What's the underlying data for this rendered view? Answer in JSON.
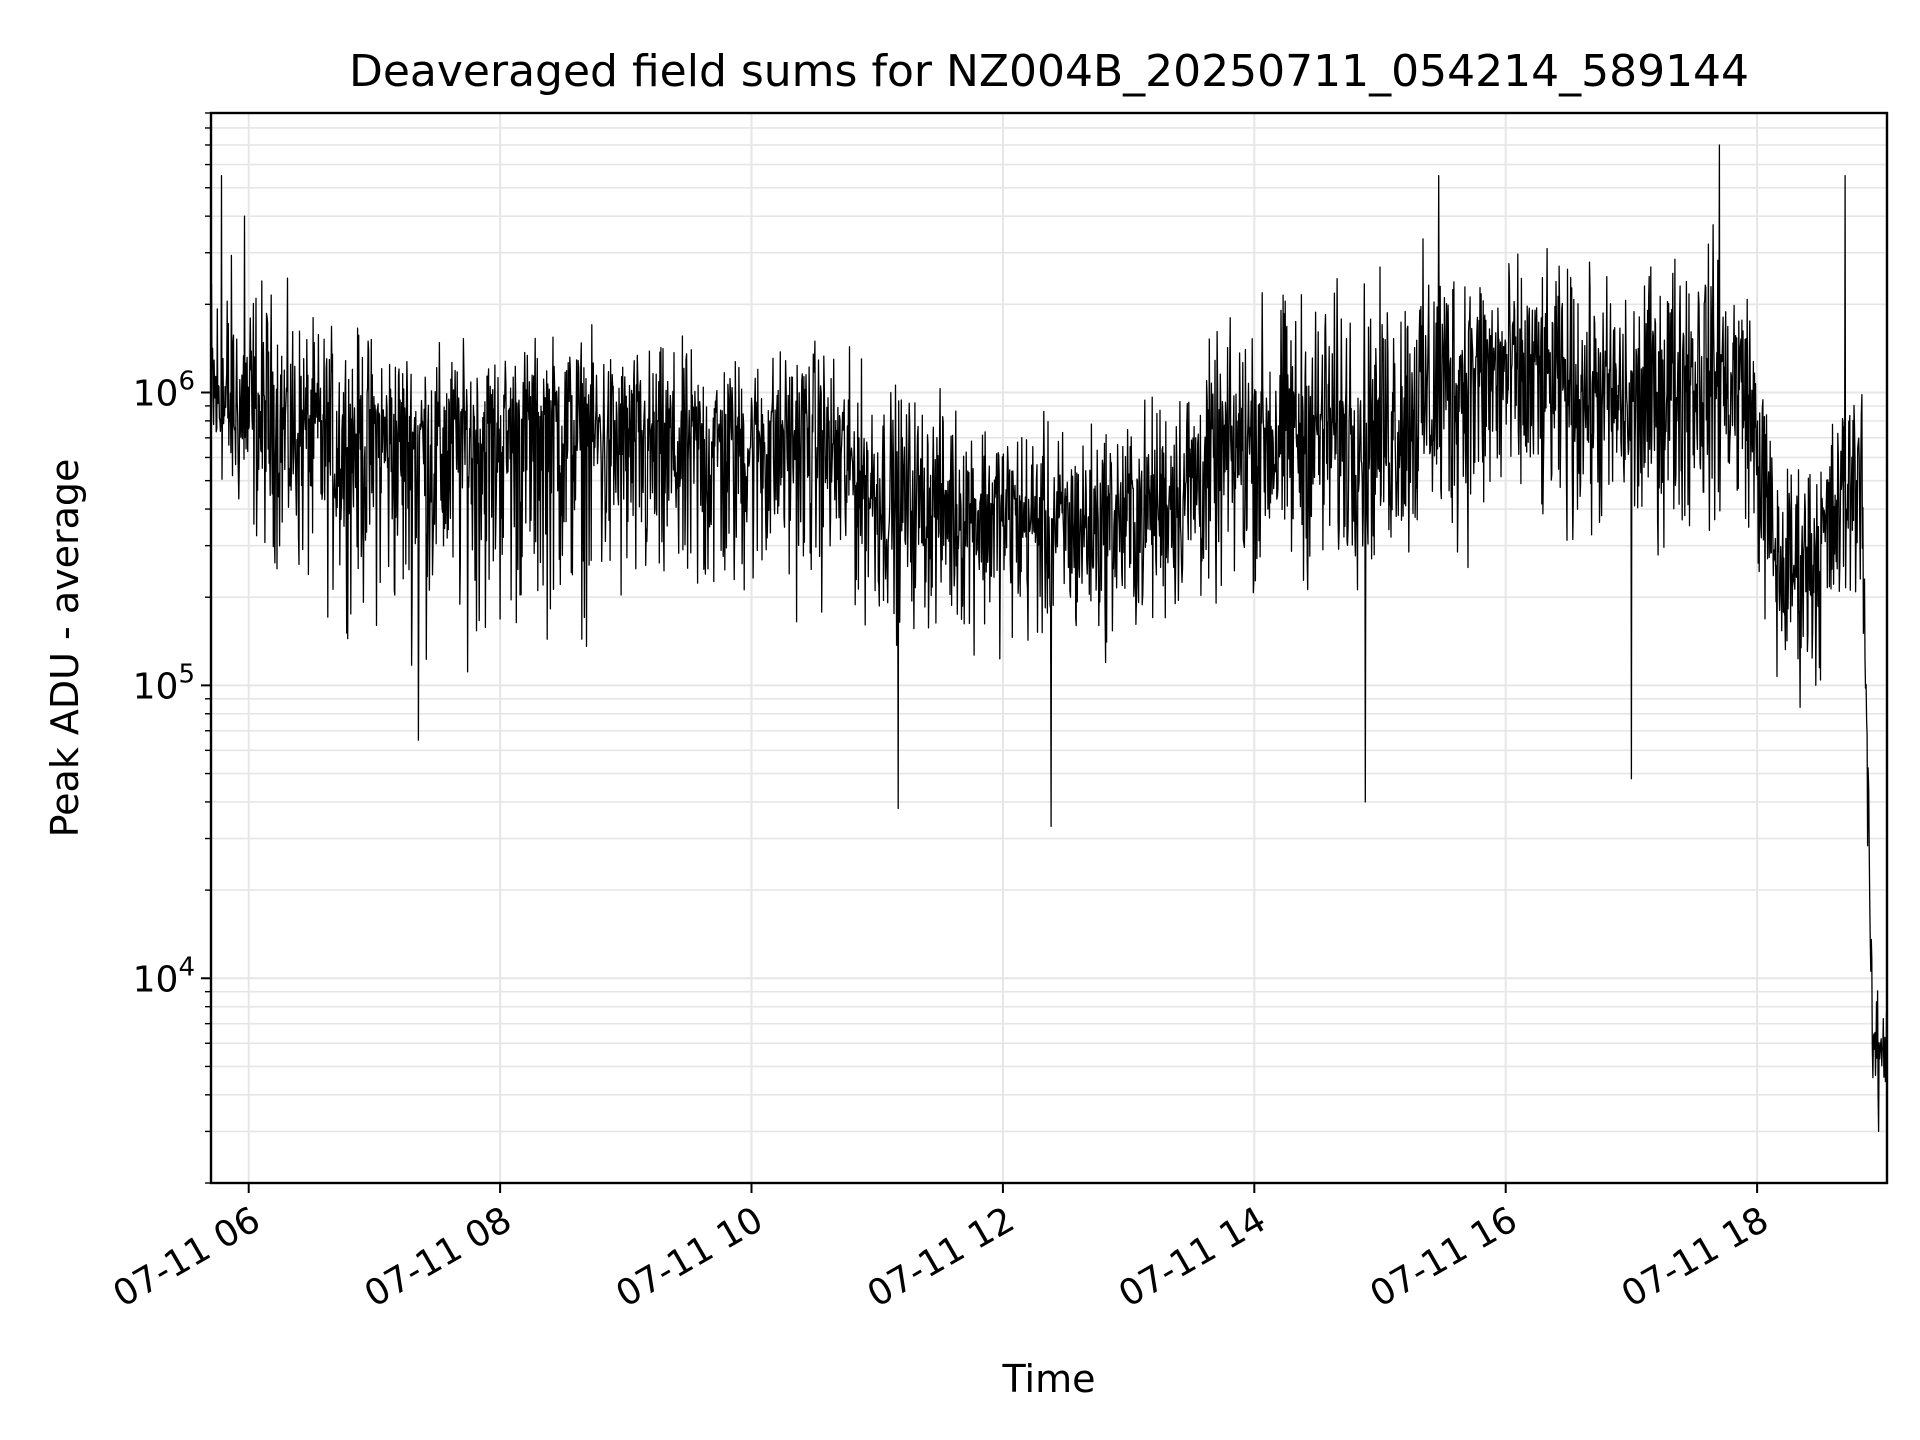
{
  "chart_data": {
    "type": "line",
    "title": "Deaveraged field sums for NZ004B_20250711_054214_589144",
    "xlabel": "Time",
    "ylabel": "Peak ADU - average",
    "yscale": "log",
    "ylim": [
      2000,
      9000000
    ],
    "xlim": [
      "2025-07-11 05:42",
      "2025-07-11 19:02"
    ],
    "grid": true,
    "line_color": "#000000",
    "grid_color": "#e6e6e6",
    "x_ticks": [
      {
        "value": "2025-07-11 06:00",
        "label": "07-11 06"
      },
      {
        "value": "2025-07-11 08:00",
        "label": "07-11 08"
      },
      {
        "value": "2025-07-11 10:00",
        "label": "07-11 10"
      },
      {
        "value": "2025-07-11 12:00",
        "label": "07-11 12"
      },
      {
        "value": "2025-07-11 14:00",
        "label": "07-11 14"
      },
      {
        "value": "2025-07-11 16:00",
        "label": "07-11 16"
      },
      {
        "value": "2025-07-11 18:00",
        "label": "07-11 18"
      }
    ],
    "y_ticks": [
      {
        "value": 10000,
        "base": "10",
        "exp": "4"
      },
      {
        "value": 100000,
        "base": "10",
        "exp": "5"
      },
      {
        "value": 1000000,
        "base": "10",
        "exp": "6"
      }
    ],
    "series": [
      {
        "name": "",
        "envelope": [
          {
            "t": "2025-07-11 05:42",
            "low": 500000,
            "mid": 900000,
            "high": 3500000
          },
          {
            "t": "2025-07-11 06:00",
            "low": 300000,
            "mid": 800000,
            "high": 3000000
          },
          {
            "t": "2025-07-11 06:30",
            "low": 180000,
            "mid": 750000,
            "high": 1800000
          },
          {
            "t": "2025-07-11 07:00",
            "low": 150000,
            "mid": 700000,
            "high": 1700000
          },
          {
            "t": "2025-07-11 07:30",
            "low": 120000,
            "mid": 700000,
            "high": 1500000
          },
          {
            "t": "2025-07-11 08:00",
            "low": 130000,
            "mid": 750000,
            "high": 1500000
          },
          {
            "t": "2025-07-11 08:30",
            "low": 150000,
            "mid": 800000,
            "high": 1700000
          },
          {
            "t": "2025-07-11 09:00",
            "low": 140000,
            "mid": 700000,
            "high": 1500000
          },
          {
            "t": "2025-07-11 09:30",
            "low": 130000,
            "mid": 650000,
            "high": 1500000
          },
          {
            "t": "2025-07-11 10:00",
            "low": 170000,
            "mid": 700000,
            "high": 1400000
          },
          {
            "t": "2025-07-11 10:30",
            "low": 180000,
            "mid": 750000,
            "high": 1600000
          },
          {
            "t": "2025-07-11 11:00",
            "low": 150000,
            "mid": 450000,
            "high": 1200000
          },
          {
            "t": "2025-07-11 11:30",
            "low": 140000,
            "mid": 420000,
            "high": 1000000
          },
          {
            "t": "2025-07-11 12:00",
            "low": 130000,
            "mid": 380000,
            "high": 900000
          },
          {
            "t": "2025-07-11 12:30",
            "low": 120000,
            "mid": 350000,
            "high": 800000
          },
          {
            "t": "2025-07-11 13:00",
            "low": 130000,
            "mid": 380000,
            "high": 900000
          },
          {
            "t": "2025-07-11 13:30",
            "low": 160000,
            "mid": 500000,
            "high": 1300000
          },
          {
            "t": "2025-07-11 14:00",
            "low": 200000,
            "mid": 700000,
            "high": 2200000
          },
          {
            "t": "2025-07-11 14:30",
            "low": 200000,
            "mid": 750000,
            "high": 2500000
          },
          {
            "t": "2025-07-11 15:00",
            "low": 220000,
            "mid": 750000,
            "high": 2500000
          },
          {
            "t": "2025-07-11 15:30",
            "low": 250000,
            "mid": 1100000,
            "high": 3500000
          },
          {
            "t": "2025-07-11 16:00",
            "low": 280000,
            "mid": 1200000,
            "high": 3000000
          },
          {
            "t": "2025-07-11 16:30",
            "low": 280000,
            "mid": 1100000,
            "high": 2800000
          },
          {
            "t": "2025-07-11 17:00",
            "low": 260000,
            "mid": 900000,
            "high": 2500000
          },
          {
            "t": "2025-07-11 17:30",
            "low": 300000,
            "mid": 1200000,
            "high": 4000000
          },
          {
            "t": "2025-07-11 17:55",
            "low": 350000,
            "mid": 1000000,
            "high": 3000000
          },
          {
            "t": "2025-07-11 18:10",
            "low": 80000,
            "mid": 250000,
            "high": 600000
          },
          {
            "t": "2025-07-11 18:30",
            "low": 90000,
            "mid": 300000,
            "high": 700000
          },
          {
            "t": "2025-07-11 18:50",
            "low": 200000,
            "mid": 600000,
            "high": 1500000
          },
          {
            "t": "2025-07-11 18:55",
            "low": 3500,
            "mid": 6000,
            "high": 9000
          },
          {
            "t": "2025-07-11 19:02",
            "low": 3500,
            "mid": 6000,
            "high": 9500
          }
        ],
        "notable_points": [
          {
            "t": "2025-07-11 05:47",
            "value": 5500000
          },
          {
            "t": "2025-07-11 05:58",
            "value": 4000000
          },
          {
            "t": "2025-07-11 07:21",
            "value": 65000
          },
          {
            "t": "2025-07-11 11:10",
            "value": 38000
          },
          {
            "t": "2025-07-11 12:23",
            "value": 33000
          },
          {
            "t": "2025-07-11 14:53",
            "value": 40000
          },
          {
            "t": "2025-07-11 15:28",
            "value": 5500000
          },
          {
            "t": "2025-07-11 17:00",
            "value": 48000
          },
          {
            "t": "2025-07-11 17:42",
            "value": 7000000
          },
          {
            "t": "2025-07-11 18:42",
            "value": 5500000
          },
          {
            "t": "2025-07-11 18:58",
            "value": 3000
          }
        ]
      }
    ]
  }
}
